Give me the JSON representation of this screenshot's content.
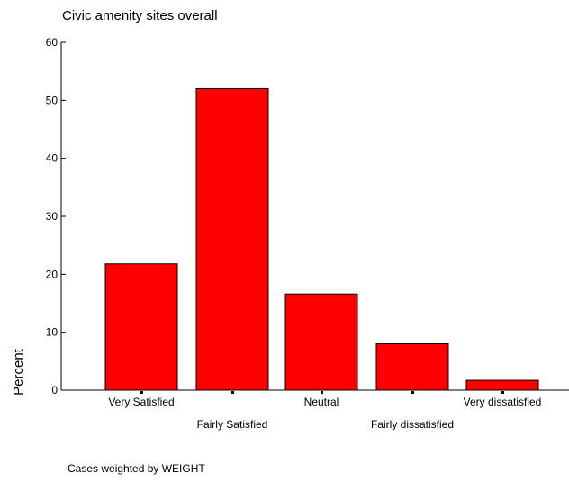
{
  "chart_data": {
    "type": "bar",
    "title": "Civic amenity sites overall",
    "ylabel": "Percent",
    "xlabel": "",
    "footnote": "Cases weighted by WEIGHT",
    "categories": [
      "Very Satisfied",
      "Fairly Satisfied",
      "Neutral",
      "Fairly dissatisfied",
      "Very dissatisfied"
    ],
    "values": [
      21.8,
      52.0,
      16.6,
      8.0,
      1.7
    ],
    "ylim": [
      0,
      60
    ],
    "yticks": [
      "0",
      "10",
      "20",
      "30",
      "40",
      "50",
      "60"
    ],
    "grid": false,
    "legend": "none",
    "bar_color": "#ff0000",
    "bar_edge_color": "#000000"
  }
}
